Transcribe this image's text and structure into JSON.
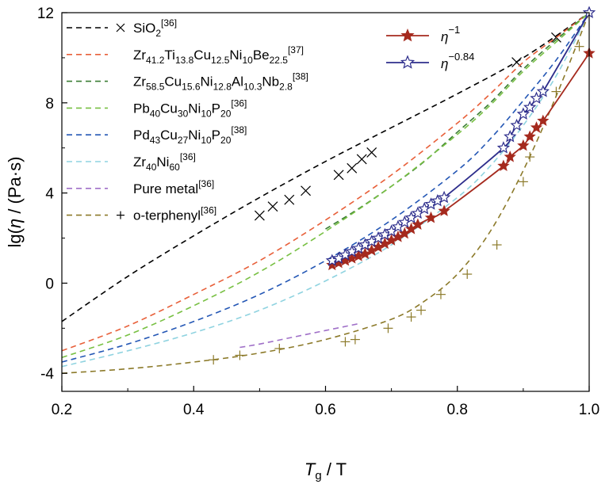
{
  "chart_data": {
    "type": "line",
    "xlabel": {
      "main": "T",
      "sub": "g",
      "rest": " / T"
    },
    "ylabel": {
      "pre": "lg(",
      "eta": "η",
      "post": " / (Pa·s)"
    },
    "xlim": [
      0.2,
      1.0
    ],
    "ylim": [
      -4.8,
      12
    ],
    "xticks": [
      0.2,
      0.4,
      0.6,
      0.8,
      1.0
    ],
    "xtick_labels": [
      "0.2",
      "0.4",
      "0.6",
      "0.8",
      "1.0"
    ],
    "yticks": [
      -4,
      0,
      4,
      8,
      12
    ],
    "ytick_labels": [
      "-4",
      "0",
      "4",
      "8",
      "12"
    ],
    "grid": false,
    "legend_left_position": "top-left",
    "legend_right_position": "top-center",
    "reference_series": [
      {
        "id": "sio2",
        "label": [
          {
            "t": "SiO"
          },
          {
            "t": "2",
            "sub": true
          },
          {
            "t": "[36]",
            "sup": true
          }
        ],
        "color": "#000000",
        "fit_x": [
          0.2,
          0.3,
          0.4,
          0.5,
          0.6,
          0.7,
          0.8,
          0.9,
          1.0
        ],
        "fit_y": [
          -1.7,
          0.3,
          2.1,
          3.8,
          5.4,
          6.9,
          8.4,
          10.0,
          12.0
        ],
        "marker": "x",
        "markers": [
          [
            0.5,
            3.0
          ],
          [
            0.52,
            3.4
          ],
          [
            0.545,
            3.7
          ],
          [
            0.57,
            4.1
          ],
          [
            0.62,
            4.8
          ],
          [
            0.64,
            5.1
          ],
          [
            0.655,
            5.5
          ],
          [
            0.67,
            5.8
          ],
          [
            0.89,
            9.8
          ],
          [
            0.95,
            10.9
          ]
        ]
      },
      {
        "id": "zr41",
        "label": [
          {
            "t": "Zr"
          },
          {
            "t": "41.2",
            "sub": true
          },
          {
            "t": "Ti"
          },
          {
            "t": "13.8",
            "sub": true
          },
          {
            "t": "Cu"
          },
          {
            "t": "12.5",
            "sub": true
          },
          {
            "t": "Ni"
          },
          {
            "t": "10",
            "sub": true
          },
          {
            "t": "Be"
          },
          {
            "t": "22.5",
            "sub": true
          },
          {
            "t": "[37]",
            "sup": true
          }
        ],
        "color": "#e8603a",
        "fit_x": [
          0.2,
          0.3,
          0.4,
          0.5,
          0.6,
          0.7,
          0.8,
          0.85,
          0.9,
          0.95,
          1.0
        ],
        "fit_y": [
          -3.0,
          -1.9,
          -0.5,
          1.0,
          2.8,
          4.8,
          7.1,
          8.4,
          9.8,
          10.9,
          12.0
        ]
      },
      {
        "id": "zr58",
        "label": [
          {
            "t": "Zr"
          },
          {
            "t": "58.5",
            "sub": true
          },
          {
            "t": "Cu"
          },
          {
            "t": "15.6",
            "sub": true
          },
          {
            "t": "Ni"
          },
          {
            "t": "12.8",
            "sub": true
          },
          {
            "t": "Al"
          },
          {
            "t": "10.3",
            "sub": true
          },
          {
            "t": "Nb"
          },
          {
            "t": "2.8",
            "sub": true
          },
          {
            "t": "[38]",
            "sup": true
          }
        ],
        "color": "#3a7d33",
        "fit_x": [
          0.6,
          0.65,
          0.7,
          0.75,
          0.8,
          0.85,
          0.9,
          0.95,
          1.0
        ],
        "fit_y": [
          2.4,
          3.3,
          4.3,
          5.4,
          6.7,
          8.0,
          9.5,
          10.8,
          12.0
        ]
      },
      {
        "id": "pb40",
        "label": [
          {
            "t": "Pb"
          },
          {
            "t": "40",
            "sub": true
          },
          {
            "t": "Cu"
          },
          {
            "t": "30",
            "sub": true
          },
          {
            "t": "Ni"
          },
          {
            "t": "10",
            "sub": true
          },
          {
            "t": "P"
          },
          {
            "t": "20",
            "sub": true
          },
          {
            "t": "[36]",
            "sup": true
          }
        ],
        "color": "#78c043",
        "fit_x": [
          0.2,
          0.3,
          0.4,
          0.5,
          0.6,
          0.7,
          0.8,
          0.85,
          0.9,
          0.95,
          1.0
        ],
        "fit_y": [
          -3.3,
          -2.3,
          -1.0,
          0.5,
          2.3,
          4.3,
          6.6,
          7.9,
          9.4,
          10.7,
          12.0
        ]
      },
      {
        "id": "pd43",
        "label": [
          {
            "t": "Pd"
          },
          {
            "t": "43",
            "sub": true
          },
          {
            "t": "Cu"
          },
          {
            "t": "27",
            "sub": true
          },
          {
            "t": "Ni"
          },
          {
            "t": "10",
            "sub": true
          },
          {
            "t": "P"
          },
          {
            "t": "20",
            "sub": true
          },
          {
            "t": "[38]",
            "sup": true
          }
        ],
        "color": "#2457b5",
        "fit_x": [
          0.2,
          0.3,
          0.4,
          0.5,
          0.6,
          0.7,
          0.8,
          0.85,
          0.9,
          0.95,
          1.0
        ],
        "fit_y": [
          -3.5,
          -2.7,
          -1.7,
          -0.5,
          1.0,
          2.8,
          5.0,
          6.4,
          8.1,
          9.9,
          12.0
        ]
      },
      {
        "id": "zr40",
        "label": [
          {
            "t": "Zr"
          },
          {
            "t": "40",
            "sub": true
          },
          {
            "t": "Ni"
          },
          {
            "t": "60",
            "sub": true
          },
          {
            "t": "[36]",
            "sup": true
          }
        ],
        "color": "#8fd3e0",
        "fit_x": [
          0.2,
          0.3,
          0.4,
          0.5,
          0.6,
          0.7,
          0.8,
          0.85,
          0.9,
          0.95,
          1.0
        ],
        "fit_y": [
          -3.7,
          -3.0,
          -2.2,
          -1.2,
          0.1,
          1.7,
          3.8,
          5.2,
          7.0,
          9.2,
          12.0
        ]
      },
      {
        "id": "pure",
        "label": [
          {
            "t": "Pure metal"
          },
          {
            "t": "[36]",
            "sup": true
          }
        ],
        "color": "#a070c8",
        "fit_x": [
          0.47,
          0.5,
          0.55,
          0.6,
          0.65
        ],
        "fit_y": [
          -2.85,
          -2.7,
          -2.4,
          -2.1,
          -1.8
        ]
      },
      {
        "id": "oter",
        "label": [
          {
            "t": "o-terphenyl"
          },
          {
            "t": "[36]",
            "sup": true
          }
        ],
        "color": "#8c7a2a",
        "fit_x": [
          0.2,
          0.3,
          0.4,
          0.5,
          0.6,
          0.7,
          0.75,
          0.8,
          0.85,
          0.9,
          0.95,
          1.0
        ],
        "fit_y": [
          -4.0,
          -3.8,
          -3.5,
          -3.1,
          -2.5,
          -1.6,
          -0.8,
          0.4,
          2.3,
          5.0,
          8.3,
          12.0
        ],
        "marker": "+",
        "markers": [
          [
            0.43,
            -3.4
          ],
          [
            0.47,
            -3.2
          ],
          [
            0.53,
            -2.9
          ],
          [
            0.63,
            -2.6
          ],
          [
            0.645,
            -2.5
          ],
          [
            0.695,
            -2.0
          ],
          [
            0.73,
            -1.5
          ],
          [
            0.745,
            -1.2
          ],
          [
            0.775,
            -0.5
          ],
          [
            0.815,
            0.4
          ],
          [
            0.86,
            1.7
          ],
          [
            0.9,
            4.5
          ],
          [
            0.91,
            5.6
          ],
          [
            0.95,
            8.5
          ],
          [
            0.985,
            10.5
          ]
        ]
      }
    ],
    "model_series": [
      {
        "id": "eta_inv",
        "label_base": "η",
        "label_exp": "−1",
        "color": "#a52a1e",
        "marker": "filled-star",
        "x": [
          0.61,
          0.62,
          0.63,
          0.64,
          0.65,
          0.66,
          0.67,
          0.68,
          0.69,
          0.7,
          0.71,
          0.72,
          0.73,
          0.74,
          0.76,
          0.78,
          0.87,
          0.88,
          0.9,
          0.91,
          0.92,
          0.93,
          1.0
        ],
        "y": [
          0.8,
          0.9,
          1.0,
          1.1,
          1.2,
          1.3,
          1.45,
          1.6,
          1.75,
          1.9,
          2.05,
          2.2,
          2.4,
          2.6,
          2.9,
          3.2,
          5.2,
          5.6,
          6.1,
          6.5,
          6.9,
          7.2,
          10.2
        ]
      },
      {
        "id": "eta_084",
        "label_base": "η",
        "label_exp": "−0.84",
        "color": "#2e2e8c",
        "marker": "open-star",
        "x": [
          0.61,
          0.62,
          0.63,
          0.64,
          0.65,
          0.66,
          0.67,
          0.68,
          0.69,
          0.7,
          0.71,
          0.72,
          0.73,
          0.74,
          0.75,
          0.76,
          0.77,
          0.78,
          0.87,
          0.88,
          0.89,
          0.9,
          0.91,
          0.92,
          0.93,
          1.0
        ],
        "y": [
          1.0,
          1.1,
          1.25,
          1.4,
          1.55,
          1.7,
          1.85,
          2.0,
          2.15,
          2.3,
          2.5,
          2.7,
          2.9,
          3.1,
          3.3,
          3.5,
          3.65,
          3.8,
          6.0,
          6.5,
          7.0,
          7.5,
          7.8,
          8.2,
          8.5,
          12.0
        ]
      }
    ]
  }
}
